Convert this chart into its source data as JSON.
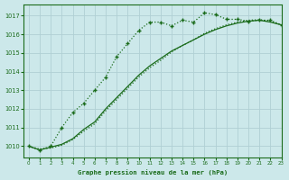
{
  "title": "Graphe pression niveau de la mer (hPa)",
  "bg_color": "#cce8ea",
  "grid_color": "#b0d0d4",
  "line_color": "#1a6b1a",
  "xlim": [
    -0.5,
    23
  ],
  "ylim": [
    1009.4,
    1017.6
  ],
  "xticks": [
    0,
    1,
    2,
    3,
    4,
    5,
    6,
    7,
    8,
    9,
    10,
    11,
    12,
    13,
    14,
    15,
    16,
    17,
    18,
    19,
    20,
    21,
    22,
    23
  ],
  "yticks": [
    1010,
    1011,
    1012,
    1013,
    1014,
    1015,
    1016,
    1017
  ],
  "series1_x": [
    0,
    1,
    2,
    3,
    4,
    5,
    6,
    7,
    8,
    9,
    10,
    11,
    12,
    13,
    14,
    15,
    16,
    17,
    18,
    19,
    20,
    21,
    22,
    23
  ],
  "series1_y": [
    1010.0,
    1009.8,
    1010.0,
    1011.0,
    1011.8,
    1012.3,
    1013.0,
    1013.7,
    1014.8,
    1015.5,
    1016.2,
    1016.65,
    1016.65,
    1016.45,
    1016.75,
    1016.65,
    1017.15,
    1017.05,
    1016.8,
    1016.8,
    1016.7,
    1016.75,
    1016.75,
    1016.5
  ],
  "series2_x": [
    0,
    1,
    2,
    3,
    4,
    5,
    6,
    7,
    8,
    9,
    10,
    11,
    12,
    13,
    14,
    15,
    16,
    17,
    18,
    19,
    20,
    21,
    22,
    23
  ],
  "series2_y": [
    1010.0,
    1009.8,
    1009.95,
    1010.1,
    1010.4,
    1010.9,
    1011.3,
    1012.0,
    1012.6,
    1013.2,
    1013.8,
    1014.3,
    1014.7,
    1015.1,
    1015.4,
    1015.7,
    1016.0,
    1016.25,
    1016.45,
    1016.6,
    1016.7,
    1016.75,
    1016.65,
    1016.5
  ],
  "series3_x": [
    0,
    1,
    2,
    3,
    4,
    5,
    6,
    7,
    8,
    9,
    10,
    11,
    12,
    13,
    14,
    15,
    16,
    17,
    18,
    19,
    20,
    21,
    22,
    23
  ],
  "series3_y": [
    1010.0,
    1009.85,
    1009.9,
    1010.05,
    1010.35,
    1010.8,
    1011.2,
    1011.9,
    1012.5,
    1013.1,
    1013.7,
    1014.2,
    1014.6,
    1015.05,
    1015.4,
    1015.7,
    1016.05,
    1016.3,
    1016.5,
    1016.65,
    1016.75,
    1016.78,
    1016.7,
    1016.5
  ]
}
